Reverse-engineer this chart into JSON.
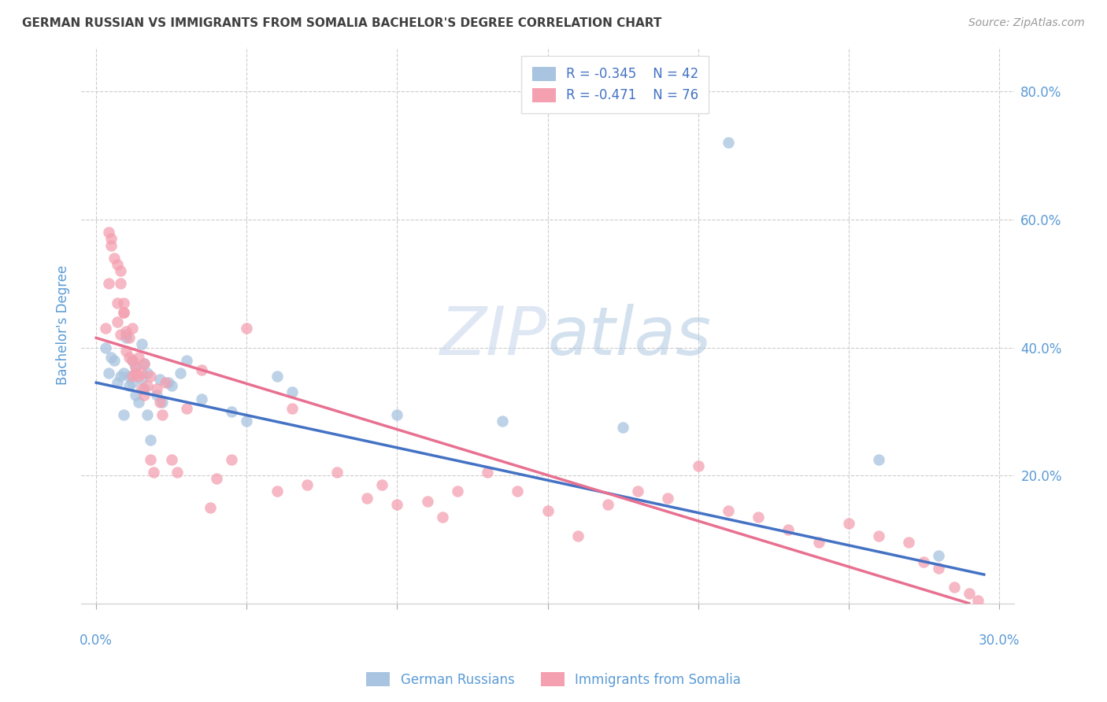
{
  "title": "GERMAN RUSSIAN VS IMMIGRANTS FROM SOMALIA BACHELOR'S DEGREE CORRELATION CHART",
  "source": "Source: ZipAtlas.com",
  "ylabel": "Bachelor's Degree",
  "watermark": "ZIPatlas",
  "legend_label1": "German Russians",
  "legend_label2": "Immigrants from Somalia",
  "r1": -0.345,
  "n1": 42,
  "r2": -0.471,
  "n2": 76,
  "xlim": [
    -0.005,
    0.305
  ],
  "ylim": [
    0.0,
    0.87
  ],
  "right_yticks": [
    0.2,
    0.4,
    0.6,
    0.8
  ],
  "right_ytick_labels": [
    "20.0%",
    "40.0%",
    "60.0%",
    "80.0%"
  ],
  "xtick_positions": [
    0.0,
    0.05,
    0.1,
    0.15,
    0.2,
    0.25,
    0.3
  ],
  "xtick_labels_outside": [
    "0.0%",
    "",
    "",
    "",
    "",
    "",
    "30.0%"
  ],
  "color1": "#a8c4e0",
  "color2": "#f4a0b0",
  "line_color1": "#4472c4",
  "line_color2": "#e87090",
  "background_color": "#ffffff",
  "grid_color": "#cccccc",
  "title_color": "#404040",
  "axis_label_color": "#5b9bd5",
  "blue_scatter_x": [
    0.003,
    0.004,
    0.005,
    0.006,
    0.007,
    0.008,
    0.009,
    0.009,
    0.01,
    0.01,
    0.011,
    0.011,
    0.012,
    0.012,
    0.013,
    0.013,
    0.014,
    0.015,
    0.015,
    0.016,
    0.016,
    0.017,
    0.017,
    0.018,
    0.02,
    0.021,
    0.022,
    0.024,
    0.025,
    0.028,
    0.03,
    0.035,
    0.045,
    0.05,
    0.06,
    0.065,
    0.1,
    0.135,
    0.175,
    0.21,
    0.26,
    0.28
  ],
  "blue_scatter_y": [
    0.4,
    0.36,
    0.385,
    0.38,
    0.345,
    0.355,
    0.36,
    0.295,
    0.42,
    0.415,
    0.355,
    0.34,
    0.38,
    0.345,
    0.325,
    0.37,
    0.315,
    0.35,
    0.405,
    0.335,
    0.375,
    0.295,
    0.36,
    0.255,
    0.325,
    0.35,
    0.315,
    0.345,
    0.34,
    0.36,
    0.38,
    0.32,
    0.3,
    0.285,
    0.355,
    0.33,
    0.295,
    0.285,
    0.275,
    0.72,
    0.225,
    0.075
  ],
  "pink_scatter_x": [
    0.003,
    0.004,
    0.005,
    0.006,
    0.007,
    0.007,
    0.008,
    0.008,
    0.009,
    0.009,
    0.01,
    0.01,
    0.011,
    0.011,
    0.012,
    0.012,
    0.013,
    0.013,
    0.014,
    0.014,
    0.015,
    0.015,
    0.016,
    0.016,
    0.017,
    0.018,
    0.018,
    0.019,
    0.02,
    0.021,
    0.022,
    0.023,
    0.025,
    0.027,
    0.03,
    0.035,
    0.038,
    0.04,
    0.045,
    0.05,
    0.06,
    0.065,
    0.07,
    0.08,
    0.09,
    0.095,
    0.1,
    0.11,
    0.115,
    0.12,
    0.13,
    0.14,
    0.15,
    0.16,
    0.17,
    0.18,
    0.19,
    0.2,
    0.21,
    0.22,
    0.23,
    0.24,
    0.25,
    0.26,
    0.27,
    0.275,
    0.28,
    0.285,
    0.29,
    0.293,
    0.004,
    0.005,
    0.007,
    0.008,
    0.009,
    0.012
  ],
  "pink_scatter_y": [
    0.43,
    0.5,
    0.56,
    0.54,
    0.44,
    0.47,
    0.52,
    0.42,
    0.455,
    0.455,
    0.425,
    0.395,
    0.385,
    0.415,
    0.38,
    0.355,
    0.37,
    0.36,
    0.385,
    0.355,
    0.335,
    0.36,
    0.325,
    0.375,
    0.34,
    0.355,
    0.225,
    0.205,
    0.335,
    0.315,
    0.295,
    0.345,
    0.225,
    0.205,
    0.305,
    0.365,
    0.15,
    0.195,
    0.225,
    0.43,
    0.175,
    0.305,
    0.185,
    0.205,
    0.165,
    0.185,
    0.155,
    0.16,
    0.135,
    0.175,
    0.205,
    0.175,
    0.145,
    0.105,
    0.155,
    0.175,
    0.165,
    0.215,
    0.145,
    0.135,
    0.115,
    0.095,
    0.125,
    0.105,
    0.095,
    0.065,
    0.055,
    0.025,
    0.015,
    0.005,
    0.58,
    0.57,
    0.53,
    0.5,
    0.47,
    0.43
  ],
  "blue_line_x": [
    0.0,
    0.295
  ],
  "blue_line_y": [
    0.345,
    0.045
  ],
  "pink_line_x": [
    0.0,
    0.29
  ],
  "pink_line_y": [
    0.415,
    0.0
  ]
}
